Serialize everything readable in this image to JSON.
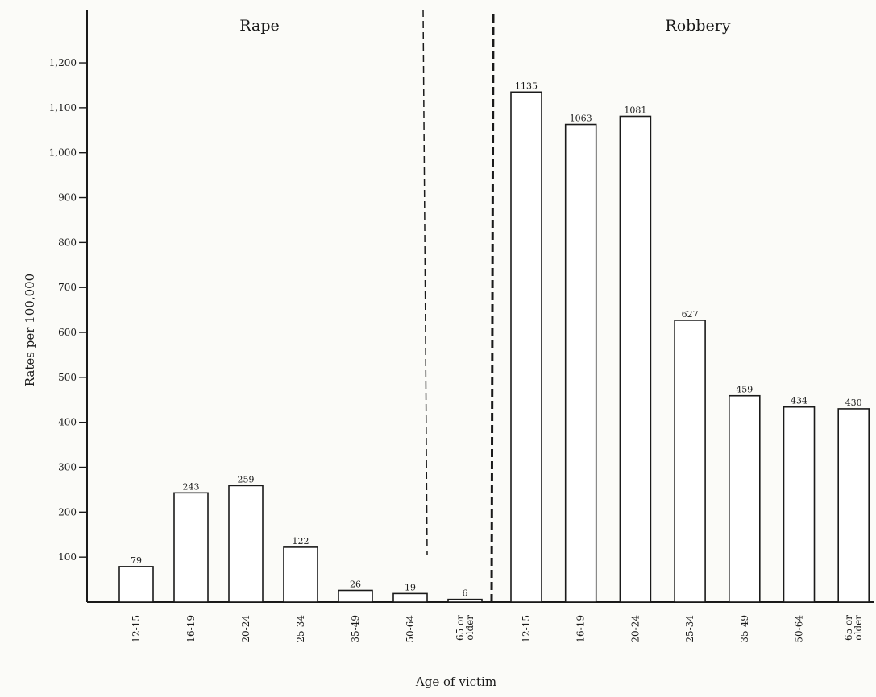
{
  "chart_data": [
    {
      "type": "bar",
      "title": "Rape",
      "categories": [
        "12-15",
        "16-19",
        "20-24",
        "25-34",
        "35-49",
        "50-64",
        "65 or older"
      ],
      "values": [
        79,
        243,
        259,
        122,
        26,
        19,
        6
      ],
      "ylabel": "Rates per 100,000",
      "xlabel": "Age of victim",
      "ylim": [
        0,
        1200
      ],
      "yticks": [
        100,
        200,
        300,
        400,
        500,
        600,
        700,
        800,
        900,
        1000,
        1100,
        1200
      ],
      "ytick_labels": [
        "100",
        "200",
        "300",
        "400",
        "500",
        "600",
        "700",
        "800",
        "900",
        "1,000",
        "1,100",
        "1,200"
      ],
      "grid": false
    },
    {
      "type": "bar",
      "title": "Robbery",
      "categories": [
        "12-15",
        "16-19",
        "20-24",
        "25-34",
        "35-49",
        "50-64",
        "65 or older"
      ],
      "values": [
        1135,
        1063,
        1081,
        627,
        459,
        434,
        430
      ],
      "ylim": [
        0,
        1200
      ],
      "grid": false
    }
  ],
  "colors": {
    "ink": "#1a1a1a",
    "paper": "#fbfbf8",
    "bar_fill": "#ffffff"
  }
}
